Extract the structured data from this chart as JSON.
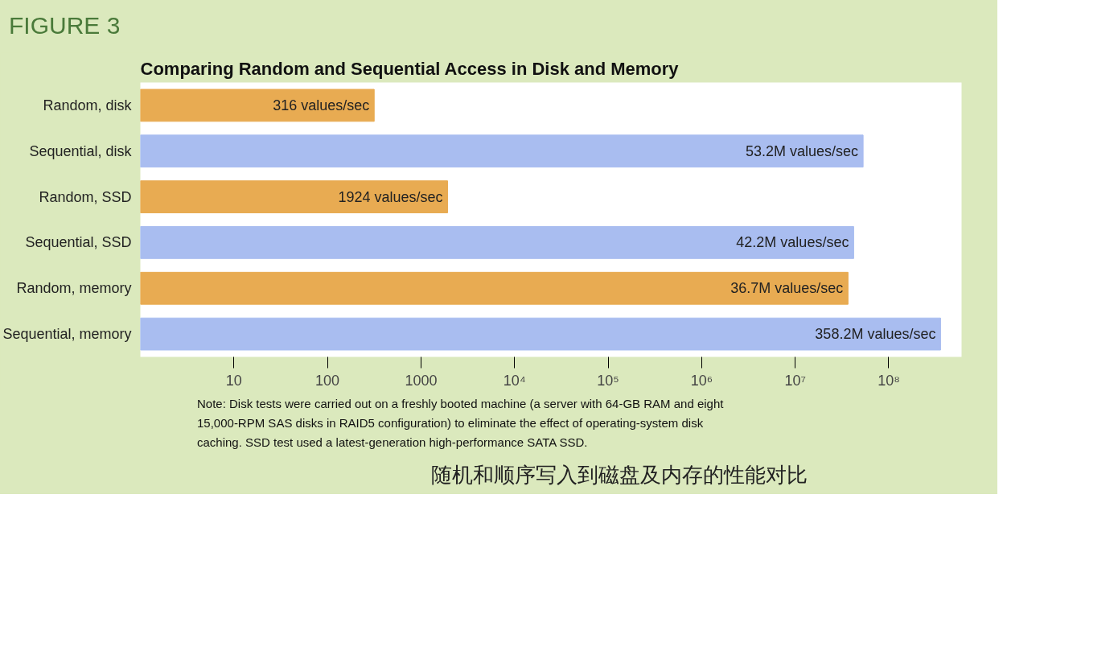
{
  "chart_data": {
    "type": "bar",
    "orientation": "horizontal",
    "title": "Comparing Random and Sequential Access in Disk and Memory",
    "categories": [
      "Random, disk",
      "Sequential, disk",
      "Random, SSD",
      "Sequential, SSD",
      "Random, memory",
      "Sequential, memory"
    ],
    "values": [
      316,
      53200000,
      1924,
      42200000,
      36700000,
      358200000
    ],
    "colors": [
      "#e8ab52",
      "#a9bdf0",
      "#e8ab52",
      "#a9bdf0",
      "#e8ab52",
      "#a9bdf0"
    ],
    "value_labels": [
      "316 values/sec",
      "53.2M values/sec",
      "1924 values/sec",
      "42.2M values/sec",
      "36.7M values/sec",
      "358.2M values/sec"
    ],
    "log": "x",
    "xlim": [
      1,
      600000000
    ],
    "xticks": [
      10,
      100,
      1000,
      {
        "value": 10000,
        "label": "10⁴"
      },
      {
        "value": 100000,
        "label": "10⁵"
      },
      {
        "value": 1000000,
        "label": "10⁶"
      },
      {
        "value": 10000000,
        "label": "10⁷"
      },
      {
        "value": 100000000,
        "label": "10⁸"
      }
    ],
    "grid": false,
    "annotations": [
      "FIGURE 3",
      "Note: Disk tests were carried out on a freshly booted machine (a server with 64-GB RAM and eight 15,000-RPM SAS disks in RAID5 configuration) to eliminate the effect of operating-system disk caching. SSD test used a latest-generation high-performance SATA SSD.",
      "随机和顺序写入到磁盘及内存的性能对比"
    ]
  }
}
